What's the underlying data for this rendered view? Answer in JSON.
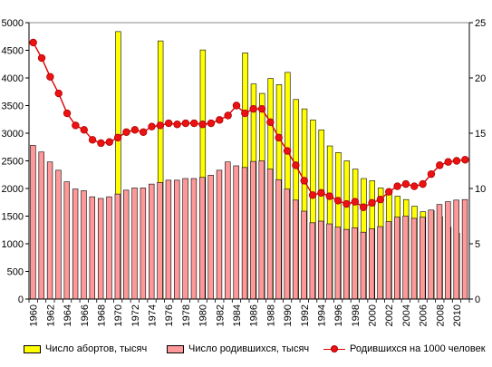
{
  "chart_data": {
    "type": "bar",
    "x": [
      1960,
      1961,
      1962,
      1963,
      1964,
      1965,
      1966,
      1967,
      1968,
      1969,
      1970,
      1971,
      1972,
      1973,
      1974,
      1975,
      1976,
      1977,
      1978,
      1979,
      1980,
      1981,
      1982,
      1983,
      1984,
      1985,
      1986,
      1987,
      1988,
      1989,
      1990,
      1991,
      1992,
      1993,
      1994,
      1995,
      1996,
      1997,
      1998,
      1999,
      2000,
      2001,
      2002,
      2003,
      2004,
      2005,
      2006,
      2007,
      2008,
      2009,
      2010,
      2011
    ],
    "x_tick_labels": [
      "1960",
      "1962",
      "1964",
      "1966",
      "1968",
      "1970",
      "1972",
      "1974",
      "1976",
      "1978",
      "1980",
      "1982",
      "1984",
      "1986",
      "1988",
      "1990",
      "1992",
      "1994",
      "1996",
      "1998",
      "2000",
      "2002",
      "2004",
      "2006",
      "2008",
      "2010"
    ],
    "y_left_ticks": [
      0,
      500,
      1000,
      1500,
      2000,
      2500,
      3000,
      3500,
      4000,
      4500,
      5000
    ],
    "y_right_ticks": [
      0,
      5,
      10,
      15,
      20,
      25
    ],
    "ylim_left": [
      0,
      5000
    ],
    "ylim_right": [
      0,
      25
    ],
    "grid": false,
    "legend_position": "bottom",
    "series": [
      {
        "name": "Число абортов, тысяч",
        "kind": "bar",
        "axis": "left",
        "color": "#ffff00",
        "values": [
          null,
          null,
          null,
          null,
          null,
          null,
          null,
          null,
          null,
          null,
          4838,
          null,
          null,
          null,
          null,
          4670,
          null,
          null,
          null,
          null,
          4506,
          null,
          null,
          null,
          null,
          4454,
          3890,
          3720,
          3990,
          3880,
          4100,
          3610,
          3440,
          3240,
          3060,
          2770,
          2650,
          2500,
          2350,
          2180,
          2140,
          2010,
          1940,
          1860,
          1800,
          1680,
          1580,
          1600,
          1490,
          1300,
          1190,
          null
        ]
      },
      {
        "name": "Число родившихся, тысяч",
        "kind": "bar",
        "axis": "left",
        "color": "#ff9999",
        "values": [
          2780,
          2660,
          2480,
          2330,
          2120,
          1990,
          1960,
          1850,
          1820,
          1850,
          1900,
          1970,
          2010,
          2010,
          2080,
          2110,
          2150,
          2150,
          2180,
          2180,
          2200,
          2240,
          2330,
          2480,
          2410,
          2380,
          2490,
          2500,
          2350,
          2160,
          1990,
          1790,
          1590,
          1380,
          1410,
          1360,
          1300,
          1260,
          1290,
          1210,
          1270,
          1310,
          1400,
          1480,
          1500,
          1460,
          1480,
          1610,
          1710,
          1760,
          1790,
          1800
        ]
      },
      {
        "name": "Родившихся на 1000 человек",
        "kind": "line",
        "axis": "right",
        "color": "#ee1111",
        "values": [
          23.2,
          21.8,
          20.1,
          18.6,
          16.8,
          15.7,
          15.3,
          14.4,
          14.1,
          14.2,
          14.6,
          15.1,
          15.3,
          15.1,
          15.6,
          15.7,
          15.9,
          15.8,
          15.9,
          15.9,
          15.8,
          15.9,
          16.2,
          16.6,
          17.5,
          16.8,
          17.2,
          17.2,
          16.0,
          14.6,
          13.4,
          12.1,
          10.7,
          9.4,
          9.6,
          9.3,
          8.9,
          8.6,
          8.8,
          8.3,
          8.7,
          9.0,
          9.7,
          10.2,
          10.4,
          10.2,
          10.4,
          11.3,
          12.1,
          12.4,
          12.5,
          12.6
        ]
      }
    ]
  }
}
